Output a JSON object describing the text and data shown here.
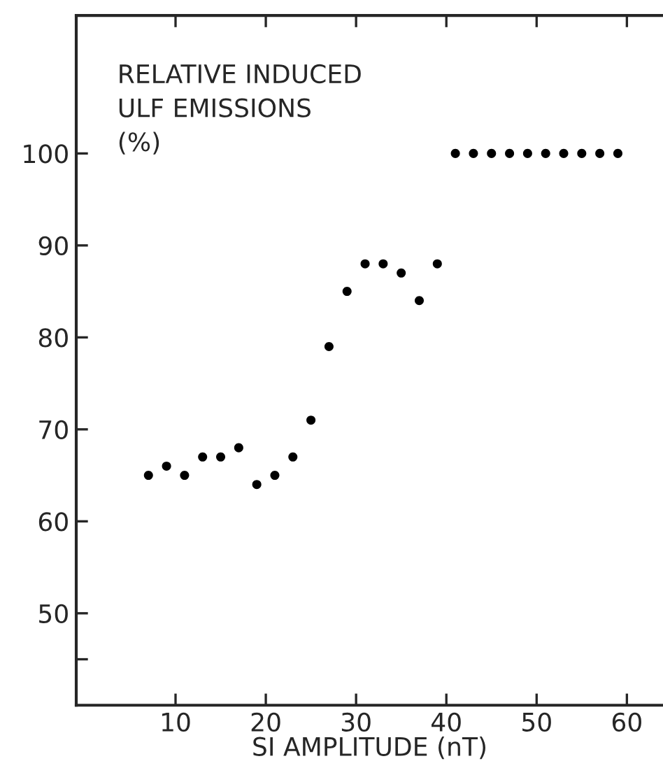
{
  "chart_data": {
    "type": "scatter",
    "xlabel": "SI AMPLITUDE (nT)",
    "ylabel": "RELATIVE INDUCED\nULF EMISSIONS\n(%)",
    "x": [
      7,
      9,
      11,
      13,
      15,
      17,
      19,
      21,
      23,
      25,
      27,
      29,
      31,
      33,
      35,
      37,
      39,
      41,
      43,
      45,
      47,
      49,
      51,
      53,
      55,
      57,
      59
    ],
    "series": [
      {
        "color": "#000000",
        "values": [
          65,
          66,
          65,
          67,
          67,
          68,
          64,
          65,
          67,
          71,
          79,
          85,
          88,
          88,
          87,
          84,
          88,
          100,
          100,
          100,
          100,
          100,
          100,
          100,
          100,
          100,
          100
        ]
      }
    ],
    "xlim": [
      -1,
      64
    ],
    "ylim": [
      40,
      115
    ],
    "xticks": [
      10,
      20,
      30,
      40,
      50,
      60
    ],
    "yticks": [
      {
        "value": 45,
        "label": null
      },
      50,
      60,
      70,
      80,
      90,
      100
    ],
    "marker": "circle",
    "grid": false,
    "legend": false
  }
}
